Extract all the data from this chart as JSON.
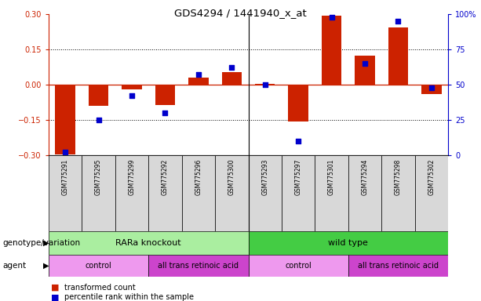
{
  "title": "GDS4294 / 1441940_x_at",
  "samples": [
    "GSM775291",
    "GSM775295",
    "GSM775299",
    "GSM775292",
    "GSM775296",
    "GSM775300",
    "GSM775293",
    "GSM775297",
    "GSM775301",
    "GSM775294",
    "GSM775298",
    "GSM775302"
  ],
  "bar_values": [
    -0.295,
    -0.09,
    -0.02,
    -0.085,
    0.03,
    0.055,
    0.005,
    -0.155,
    0.295,
    0.125,
    0.245,
    -0.04
  ],
  "dot_values": [
    2,
    25,
    42,
    30,
    57,
    62,
    50,
    10,
    98,
    65,
    95,
    48
  ],
  "ylim_left": [
    -0.3,
    0.3
  ],
  "ylim_right": [
    0,
    100
  ],
  "yticks_left": [
    -0.3,
    -0.15,
    0,
    0.15,
    0.3
  ],
  "yticks_right": [
    0,
    25,
    50,
    75,
    100
  ],
  "bar_color": "#cc2200",
  "dot_color": "#0000cc",
  "genotype_groups": [
    {
      "label": "RARa knockout",
      "start": 0,
      "end": 6,
      "color": "#aaeea0"
    },
    {
      "label": "wild type",
      "start": 6,
      "end": 12,
      "color": "#44cc44"
    }
  ],
  "agent_groups": [
    {
      "label": "control",
      "start": 0,
      "end": 3,
      "color": "#ee99ee"
    },
    {
      "label": "all trans retinoic acid",
      "start": 3,
      "end": 6,
      "color": "#cc44cc"
    },
    {
      "label": "control",
      "start": 6,
      "end": 9,
      "color": "#ee99ee"
    },
    {
      "label": "all trans retinoic acid",
      "start": 9,
      "end": 12,
      "color": "#cc44cc"
    }
  ],
  "legend_items": [
    {
      "label": "transformed count",
      "color": "#cc2200"
    },
    {
      "label": "percentile rank within the sample",
      "color": "#0000cc"
    }
  ],
  "genotype_label": "genotype/variation",
  "agent_label": "agent",
  "bg_color": "#ffffff",
  "tick_area_color": "#d8d8d8"
}
